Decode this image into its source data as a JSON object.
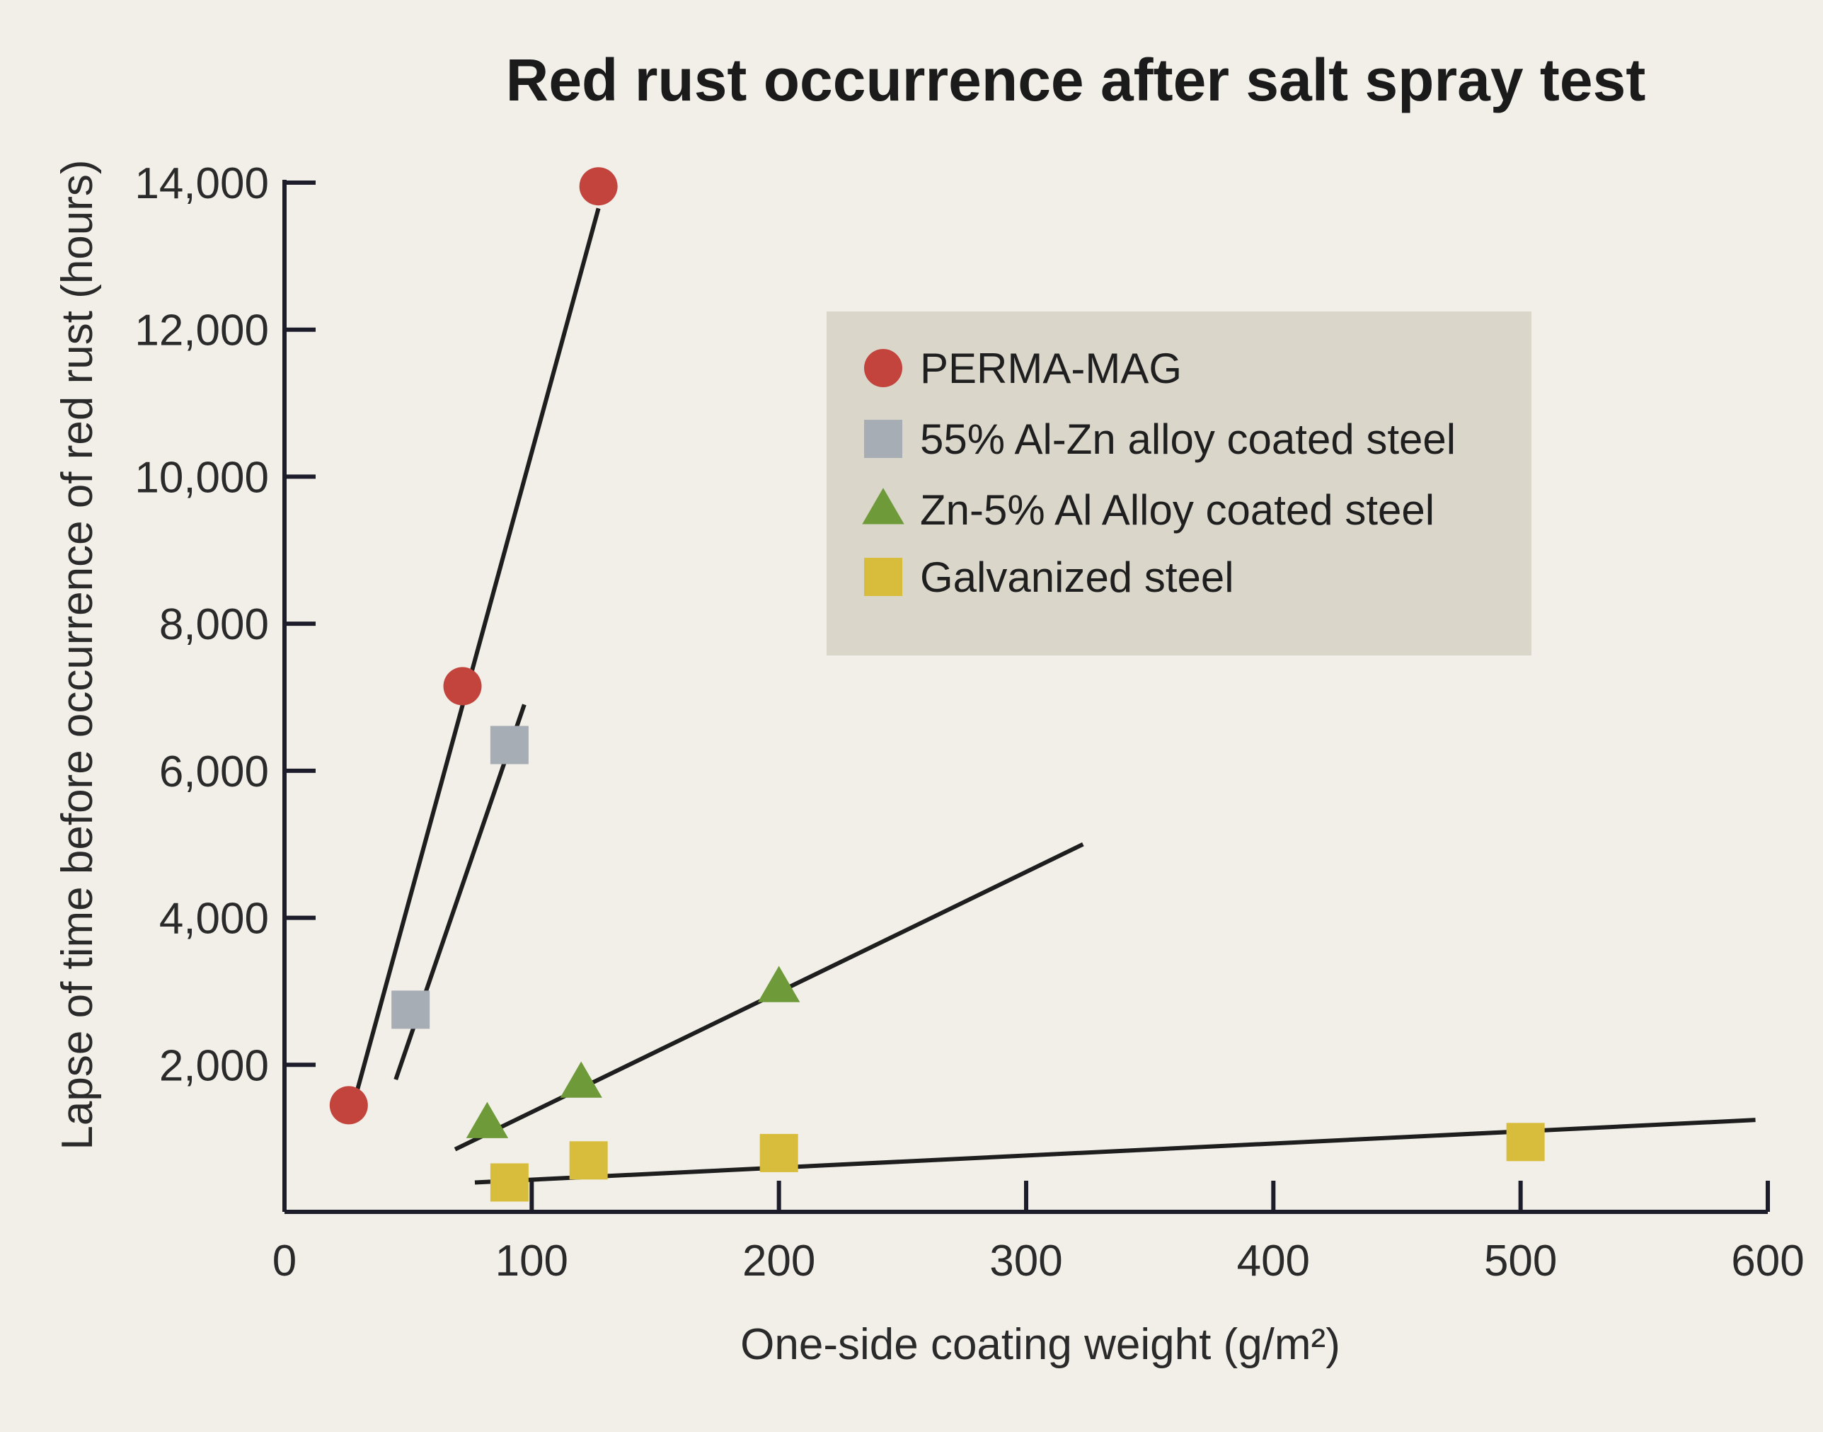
{
  "chart_data": {
    "type": "scatter",
    "title": "Red rust occurrence after salt spray test",
    "xlabel": "One-side coating weight (g/m²)",
    "ylabel": "Lapse of time before occurrence of red rust (hours)",
    "xlim": [
      0,
      600
    ],
    "ylim": [
      0,
      14000
    ],
    "x_ticks": [
      0,
      100,
      200,
      300,
      400,
      500,
      600
    ],
    "x_tick_labels": [
      "0",
      "100",
      "200",
      "300",
      "400",
      "500",
      "600"
    ],
    "y_ticks": [
      2000,
      4000,
      6000,
      8000,
      10000,
      12000,
      14000
    ],
    "y_tick_labels": [
      "2,000",
      "4,000",
      "6,000",
      "8,000",
      "10,000",
      "12,000",
      "14,000"
    ],
    "grid": false,
    "legend_position": "top-right",
    "series": [
      {
        "name": "PERMA-MAG",
        "marker": "circle",
        "color": "#c2443c",
        "points": [
          [
            26,
            1450
          ],
          [
            72,
            7150
          ],
          [
            127,
            13950
          ]
        ],
        "trend_line": [
          [
            29,
            1600
          ],
          [
            127,
            13650
          ]
        ]
      },
      {
        "name": "55% Al-Zn alloy coated steel",
        "marker": "square",
        "color": "#a7adb5",
        "points": [
          [
            51,
            2750
          ],
          [
            91,
            6350
          ]
        ],
        "trend_line": [
          [
            45,
            1800
          ],
          [
            97,
            6900
          ]
        ]
      },
      {
        "name": "Zn-5% Al Alloy coated steel",
        "marker": "triangle",
        "color": "#6f9a3a",
        "points": [
          [
            82,
            1200
          ],
          [
            120,
            1750
          ],
          [
            200,
            3050
          ]
        ],
        "trend_line": [
          [
            69,
            850
          ],
          [
            323,
            5000
          ]
        ]
      },
      {
        "name": "Galvanized steel",
        "marker": "square",
        "color": "#d8bd3c",
        "points": [
          [
            91,
            400
          ],
          [
            123,
            700
          ],
          [
            200,
            800
          ],
          [
            502,
            950
          ]
        ],
        "trend_line": [
          [
            77,
            400
          ],
          [
            595,
            1250
          ]
        ]
      }
    ]
  }
}
